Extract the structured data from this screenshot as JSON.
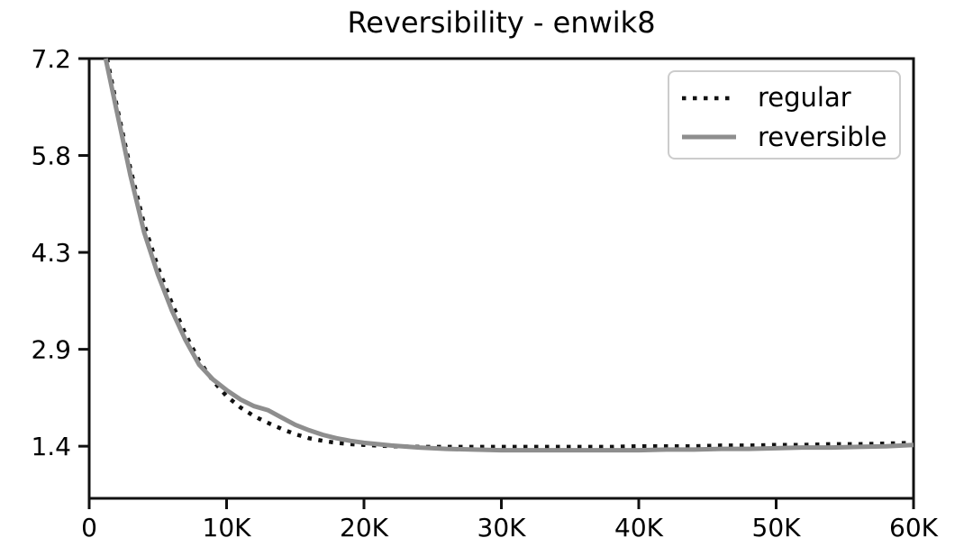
{
  "chart_data": {
    "type": "line",
    "title": "Reversibility - enwik8",
    "xlabel": "",
    "ylabel": "",
    "grid": false,
    "legend_position": "upper right",
    "xlim": [
      0,
      60000
    ],
    "ylim": [
      0.62,
      7.2
    ],
    "x_ticks": {
      "values": [
        0,
        10000,
        20000,
        30000,
        40000,
        50000,
        60000
      ],
      "labels": [
        "0",
        "10K",
        "20K",
        "30K",
        "40K",
        "50K",
        "60K"
      ]
    },
    "y_ticks": {
      "values": [
        7.2,
        5.75,
        4.3,
        2.85,
        1.4
      ],
      "labels": [
        "7.2",
        "5.8",
        "4.3",
        "2.9",
        "1.4"
      ]
    },
    "series": [
      {
        "name": "regular",
        "style": "dotted",
        "color": "#111111",
        "x": [
          1300,
          2000,
          3000,
          4000,
          5000,
          6000,
          7000,
          8000,
          9000,
          10000,
          11000,
          12000,
          13000,
          14000,
          15000,
          16000,
          17000,
          18000,
          19000,
          20000,
          21000,
          22000,
          24000,
          26000,
          28000,
          30000,
          32000,
          34000,
          36000,
          38000,
          40000,
          42000,
          44000,
          46000,
          48000,
          50000,
          52000,
          54000,
          56000,
          58000,
          60000
        ],
        "values": [
          7.2,
          6.5,
          5.55,
          4.72,
          4.08,
          3.55,
          3.08,
          2.68,
          2.38,
          2.15,
          1.98,
          1.85,
          1.75,
          1.66,
          1.58,
          1.52,
          1.48,
          1.45,
          1.43,
          1.42,
          1.41,
          1.4,
          1.39,
          1.39,
          1.39,
          1.39,
          1.39,
          1.39,
          1.39,
          1.39,
          1.4,
          1.4,
          1.4,
          1.41,
          1.41,
          1.42,
          1.42,
          1.43,
          1.43,
          1.44,
          1.45
        ]
      },
      {
        "name": "reversible",
        "style": "solid",
        "color": "#8e8e8e",
        "x": [
          1200,
          2000,
          3000,
          4000,
          5000,
          6000,
          7000,
          8000,
          9000,
          10000,
          11000,
          12000,
          13000,
          14000,
          15000,
          16000,
          17000,
          18000,
          19000,
          20000,
          21000,
          22000,
          24000,
          26000,
          28000,
          30000,
          32000,
          34000,
          36000,
          38000,
          40000,
          42000,
          44000,
          46000,
          48000,
          50000,
          52000,
          54000,
          56000,
          58000,
          60000
        ],
        "values": [
          7.2,
          6.42,
          5.45,
          4.6,
          3.97,
          3.44,
          2.99,
          2.62,
          2.4,
          2.24,
          2.1,
          2.0,
          1.94,
          1.83,
          1.72,
          1.64,
          1.57,
          1.52,
          1.48,
          1.45,
          1.43,
          1.41,
          1.38,
          1.36,
          1.35,
          1.34,
          1.34,
          1.34,
          1.34,
          1.34,
          1.34,
          1.35,
          1.35,
          1.36,
          1.36,
          1.37,
          1.38,
          1.38,
          1.39,
          1.4,
          1.42
        ]
      }
    ],
    "colors": {
      "background": "#ffffff",
      "spine": "#111111",
      "tick_text": "#000000",
      "legend_border": "#cccccc"
    }
  }
}
